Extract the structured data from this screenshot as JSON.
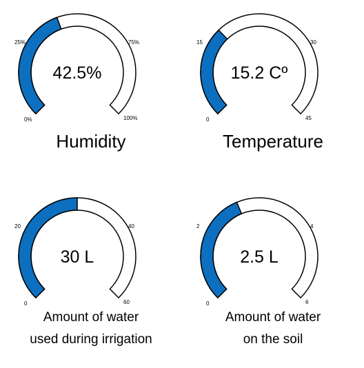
{
  "colors": {
    "fill": "#0d6fbf",
    "track": "#ffffff",
    "stroke": "#000000"
  },
  "gauges": [
    {
      "value": 42.5,
      "min": 0,
      "max": 100,
      "display": "42.5%",
      "ticks": [
        "0%",
        "25%",
        "75%",
        "100%"
      ],
      "label_lines": [
        "Humidity"
      ]
    },
    {
      "value": 15.2,
      "min": 0,
      "max": 45,
      "display": "15.2 Cº",
      "ticks": [
        "0",
        "15",
        "30",
        "45"
      ],
      "label_lines": [
        "Temperature"
      ]
    },
    {
      "value": 30,
      "min": 0,
      "max": 60,
      "display": "30 L",
      "ticks": [
        "0",
        "20",
        "40",
        "60"
      ],
      "label_lines": [
        "Amount of water",
        "used during irrigation"
      ]
    },
    {
      "value": 2.5,
      "min": 0,
      "max": 6,
      "display": "2.5 L",
      "ticks": [
        "0",
        "2",
        "4",
        "6"
      ],
      "label_lines": [
        "Amount of water",
        "on the soil"
      ]
    }
  ]
}
